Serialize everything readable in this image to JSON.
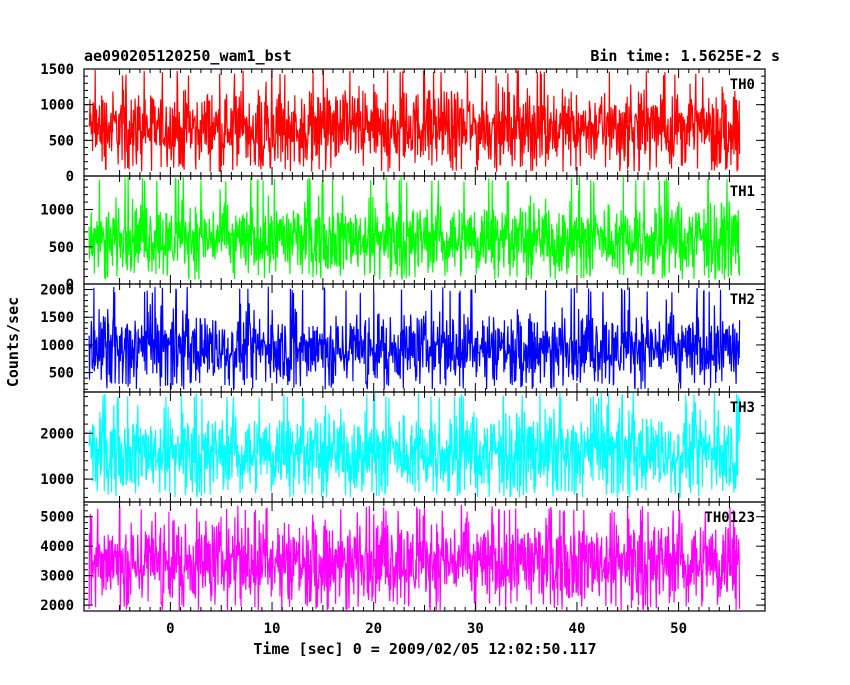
{
  "header": {
    "left_title": "ae090205120250_wam1_bst",
    "right_title": "Bin time: 1.5625E-2 s"
  },
  "chart_data": {
    "type": "line",
    "title": "ae090205120250_wam1_bst",
    "subtitle": "Bin time: 1.5625E-2 s",
    "xlabel": "Time [sec] 0 = 2009/02/05 12:02:50.117",
    "ylabel": "Counts/sec",
    "xlim": [
      -8.5,
      58.5
    ],
    "x_ticks": [
      0,
      10,
      20,
      30,
      40,
      50
    ],
    "x_data_range": [
      -8,
      56
    ],
    "grid": false,
    "legend": "none",
    "series": [
      {
        "name": "TH0",
        "color": "#ff0000",
        "ylim": [
          0,
          1500
        ],
        "y_ticks": [
          0,
          500,
          1000,
          1500
        ],
        "center": 680,
        "low": 60,
        "high": 1500
      },
      {
        "name": "TH1",
        "color": "#00ff00",
        "ylim": [
          0,
          1450
        ],
        "y_ticks": [
          0,
          500,
          1000
        ],
        "center": 620,
        "low": 60,
        "high": 1450
      },
      {
        "name": "TH2",
        "color": "#0000ff",
        "ylim": [
          150,
          2100
        ],
        "y_ticks": [
          500,
          1000,
          1500,
          2000
        ],
        "center": 950,
        "low": 200,
        "high": 2050
      },
      {
        "name": "TH3",
        "color": "#00ffff",
        "ylim": [
          500,
          2900
        ],
        "y_ticks": [
          1000,
          2000
        ],
        "center": 1600,
        "low": 600,
        "high": 2900
      },
      {
        "name": "TH0123",
        "color": "#ff00ff",
        "ylim": [
          1800,
          5500
        ],
        "y_ticks": [
          2000,
          3000,
          4000,
          5000
        ],
        "center": 3500,
        "low": 1800,
        "high": 5400
      }
    ]
  }
}
